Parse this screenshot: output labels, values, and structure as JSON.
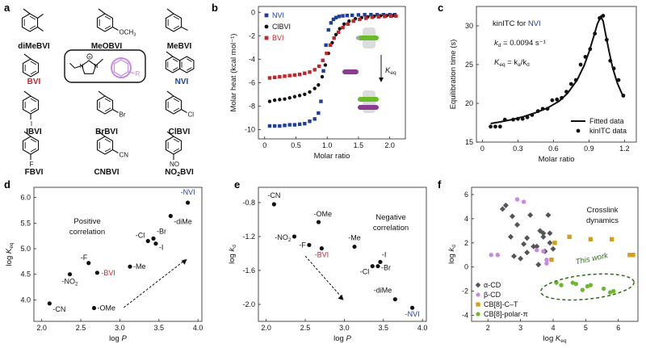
{
  "panels": {
    "a": "a",
    "b": "b",
    "c": "c",
    "d": "d",
    "e": "e",
    "f": "f"
  },
  "molecules": [
    {
      "name": "diMeBVI",
      "color": "#111111"
    },
    {
      "name": "MeOBVI",
      "color": "#111111",
      "sub": "OCH",
      "sub3": "3"
    },
    {
      "name": "MeBVI",
      "color": "#111111"
    },
    {
      "name": "BVI",
      "color": "#c0272d"
    },
    {
      "name": "NVI",
      "color": "#1f3f99"
    },
    {
      "name": "IBVI",
      "color": "#111111",
      "sub": "I"
    },
    {
      "name": "BrBVI",
      "color": "#111111",
      "sub": "Br"
    },
    {
      "name": "ClBVI",
      "color": "#111111",
      "sub": "Cl"
    },
    {
      "name": "FBVI",
      "color": "#111111",
      "sub": "F"
    },
    {
      "name": "CNBVI",
      "color": "#111111",
      "sub": "CN"
    },
    {
      "name": "NO2BVI",
      "color": "#111111",
      "sub": "NO"
    }
  ],
  "core_labels": {
    "R": "R",
    "plus": "+",
    "N": "N"
  },
  "colors": {
    "blue": "#1f3f99",
    "red": "#c0272d",
    "black": "#111111",
    "purple": "#c58be0",
    "gold": "#d4a017",
    "green": "#6aba2a",
    "green_dark": "#2e6b16",
    "gray": "#555555"
  },
  "chart_data": [
    {
      "panel": "b",
      "type": "scatter",
      "xlabel": "Molar ratio",
      "ylabel": "Molar heat (kcal mol⁻¹)",
      "xlim": [
        -0.1,
        2.25
      ],
      "ylim": [
        -10.8,
        0.5
      ],
      "xticks": [
        0,
        0.5,
        1.0,
        1.5,
        2.0
      ],
      "xticklabels": [
        "0",
        "0.5",
        "1.0",
        "1.5",
        "2.0"
      ],
      "yticks": [
        0,
        -2,
        -4,
        -6,
        -8,
        -10
      ],
      "legend_position": "top-left",
      "series": [
        {
          "name": "NVI",
          "color": "#1f3f99",
          "marker": "square",
          "x": [
            0.08,
            0.16,
            0.24,
            0.32,
            0.4,
            0.48,
            0.56,
            0.64,
            0.72,
            0.8,
            0.86,
            0.9,
            0.94,
            0.98,
            1.02,
            1.06,
            1.1,
            1.14,
            1.19,
            1.25,
            1.32,
            1.4,
            1.5,
            1.6,
            1.7,
            1.8,
            1.9,
            2.0,
            2.08
          ],
          "y": [
            -9.7,
            -9.7,
            -9.7,
            -9.65,
            -9.6,
            -9.6,
            -9.55,
            -9.5,
            -9.3,
            -9.1,
            -8.6,
            -7.6,
            -5.0,
            -2.8,
            -1.5,
            -0.9,
            -0.6,
            -0.45,
            -0.35,
            -0.3,
            -0.27,
            -0.25,
            -0.22,
            -0.2,
            -0.2,
            -0.2,
            -0.2,
            -0.2,
            -0.2
          ]
        },
        {
          "name": "ClBVI",
          "color": "#111111",
          "marker": "circle",
          "x": [
            0.08,
            0.16,
            0.24,
            0.32,
            0.4,
            0.48,
            0.56,
            0.64,
            0.72,
            0.8,
            0.86,
            0.92,
            0.97,
            1.02,
            1.08,
            1.14,
            1.2,
            1.27,
            1.35,
            1.45,
            1.55,
            1.65,
            1.75,
            1.85,
            1.95,
            2.05
          ],
          "y": [
            -7.6,
            -7.5,
            -7.45,
            -7.4,
            -7.3,
            -7.2,
            -7.1,
            -7.0,
            -6.8,
            -6.5,
            -6.2,
            -5.5,
            -4.5,
            -3.5,
            -2.6,
            -1.9,
            -1.4,
            -1.0,
            -0.75,
            -0.55,
            -0.45,
            -0.38,
            -0.33,
            -0.3,
            -0.28,
            -0.27
          ]
        },
        {
          "name": "BVI",
          "color": "#c0272d",
          "marker": "square",
          "x": [
            0.08,
            0.16,
            0.24,
            0.32,
            0.4,
            0.48,
            0.56,
            0.64,
            0.72,
            0.8,
            0.87,
            0.93,
            0.99,
            1.05,
            1.11,
            1.18,
            1.25,
            1.33,
            1.42,
            1.52,
            1.62,
            1.72,
            1.82,
            1.92,
            2.02,
            2.1
          ],
          "y": [
            -5.6,
            -5.55,
            -5.5,
            -5.45,
            -5.4,
            -5.35,
            -5.3,
            -5.2,
            -5.1,
            -4.9,
            -4.6,
            -4.1,
            -3.5,
            -2.8,
            -2.2,
            -1.7,
            -1.3,
            -1.0,
            -0.75,
            -0.6,
            -0.5,
            -0.42,
            -0.38,
            -0.35,
            -0.33,
            -0.32
          ]
        }
      ],
      "annotation": "K",
      "annotation_sub": "eq"
    },
    {
      "panel": "c",
      "type": "scatter",
      "title": "kinITC for ",
      "title_highlight": "NVI",
      "kd_label": "k",
      "kd_sub": "d",
      "kd_value": " = 0.0094 s⁻¹",
      "keq_label": "K",
      "keq_sub": "eq",
      "keq_eq": " = k",
      "keq_eq_sub_a": "a",
      "keq_slash": "/k",
      "keq_eq_sub_d": "d",
      "xlabel": "Molar ratio",
      "ylabel": "Equilibration time (s)",
      "xlim": [
        -0.05,
        1.3
      ],
      "ylim": [
        15,
        32.5
      ],
      "xticks": [
        0,
        0.3,
        0.6,
        0.9,
        1.2
      ],
      "xticklabels": [
        "0",
        "0.3",
        "0.6",
        "0.9",
        "1.2"
      ],
      "yticks": [
        15,
        20,
        25,
        30
      ],
      "legend_position": "bottom-right",
      "series": [
        {
          "name": "Fitted data",
          "type": "line",
          "color": "#111111",
          "x": [
            0.07,
            0.15,
            0.25,
            0.35,
            0.45,
            0.55,
            0.65,
            0.72,
            0.8,
            0.86,
            0.9,
            0.94,
            0.97,
            1.0,
            1.02,
            1.04,
            1.07,
            1.1,
            1.14,
            1.18,
            1.2
          ],
          "y": [
            17.4,
            17.6,
            17.9,
            18.3,
            18.8,
            19.4,
            20.3,
            21.3,
            23.0,
            24.9,
            26.6,
            28.6,
            30.2,
            31.2,
            30.6,
            29.0,
            26.7,
            24.6,
            22.6,
            21.2,
            20.8
          ]
        },
        {
          "name": "kinITC data",
          "type": "scatter",
          "color": "#111111",
          "x": [
            0.07,
            0.11,
            0.15,
            0.19,
            0.26,
            0.3,
            0.34,
            0.38,
            0.42,
            0.47,
            0.51,
            0.55,
            0.59,
            0.63,
            0.67,
            0.71,
            0.75,
            0.79,
            0.83,
            0.87,
            0.91,
            0.95,
            0.99,
            1.02,
            1.05,
            1.08,
            1.11,
            1.15,
            1.19
          ],
          "y": [
            17.0,
            17.0,
            17.0,
            17.9,
            17.9,
            18.0,
            18.0,
            18.2,
            18.5,
            19.0,
            19.3,
            19.3,
            20.4,
            20.5,
            20.7,
            21.5,
            22.5,
            23.0,
            25.0,
            26.0,
            27.0,
            29.0,
            31.0,
            31.3,
            28.2,
            25.5,
            24.5,
            23.0,
            21.0
          ]
        }
      ]
    },
    {
      "panel": "d",
      "type": "scatter",
      "xlabel": "log P",
      "ylabel": "log K",
      "ylabel_sub": "eq",
      "xlim": [
        1.9,
        4.05
      ],
      "ylim": [
        3.58,
        6.2
      ],
      "xticks": [
        2.0,
        2.5,
        3.0,
        3.5,
        4.0
      ],
      "xticklabels": [
        "2.0",
        "2.5",
        "3.0",
        "3.5",
        "4.0"
      ],
      "yticks": [
        4.0,
        4.5,
        5.0,
        5.5,
        6.0
      ],
      "yticklabels": [
        "4.0",
        "4.5",
        "5.0",
        "5.5",
        "6.0"
      ],
      "annotation": [
        "Positive",
        "correlation"
      ],
      "points": [
        {
          "label": "-CN",
          "x": 2.1,
          "y": 3.93,
          "color": "#111111"
        },
        {
          "label": "-NO",
          "sub": "2",
          "x": 2.36,
          "y": 4.5,
          "color": "#111111"
        },
        {
          "label": "-F",
          "x": 2.6,
          "y": 4.72,
          "color": "#111111"
        },
        {
          "label": "-BVI",
          "x": 2.71,
          "y": 4.53,
          "color": "#c0272d"
        },
        {
          "label": "-OMe",
          "x": 2.67,
          "y": 3.84,
          "color": "#111111"
        },
        {
          "label": "-Me",
          "x": 3.13,
          "y": 4.65,
          "color": "#111111"
        },
        {
          "label": "-Cl",
          "x": 3.36,
          "y": 5.15,
          "color": "#111111"
        },
        {
          "label": "-Br",
          "x": 3.43,
          "y": 5.2,
          "color": "#111111"
        },
        {
          "label": "-I",
          "x": 3.46,
          "y": 5.1,
          "color": "#111111"
        },
        {
          "label": "-diMe",
          "x": 3.65,
          "y": 5.64,
          "color": "#111111"
        },
        {
          "label": "-NVI",
          "x": 3.87,
          "y": 5.9,
          "color": "#1f3f99"
        }
      ]
    },
    {
      "panel": "e",
      "type": "scatter",
      "xlabel": "log P",
      "ylabel": "log k",
      "ylabel_sub": "d",
      "xlim": [
        1.9,
        4.05
      ],
      "ylim": [
        -2.2,
        -0.62
      ],
      "xticks": [
        2.0,
        2.5,
        3.0,
        3.5,
        4.0
      ],
      "xticklabels": [
        "2.0",
        "2.5",
        "3.0",
        "3.5",
        "4.0"
      ],
      "yticks": [
        -0.8,
        -1.2,
        -1.6,
        -2.0
      ],
      "yticklabels": [
        "-0.8",
        "-1.2",
        "-1.6",
        "-2.0"
      ],
      "annotation": [
        "Negative",
        "correlation"
      ],
      "points": [
        {
          "label": "-CN",
          "x": 2.1,
          "y": -0.82,
          "color": "#111111"
        },
        {
          "label": "-OMe",
          "x": 2.67,
          "y": -1.03,
          "color": "#111111"
        },
        {
          "label": "-NO",
          "sub": "2",
          "x": 2.36,
          "y": -1.2,
          "color": "#111111"
        },
        {
          "label": "-F",
          "x": 2.55,
          "y": -1.3,
          "color": "#111111"
        },
        {
          "label": "-BVI",
          "x": 2.71,
          "y": -1.34,
          "color": "#c0272d"
        },
        {
          "label": "-Me",
          "x": 3.13,
          "y": -1.32,
          "color": "#111111"
        },
        {
          "label": "-I",
          "x": 3.46,
          "y": -1.5,
          "color": "#111111"
        },
        {
          "label": "-Cl",
          "x": 3.36,
          "y": -1.55,
          "color": "#111111"
        },
        {
          "label": "-Br",
          "x": 3.43,
          "y": -1.55,
          "color": "#111111"
        },
        {
          "label": "-diMe",
          "x": 3.65,
          "y": -1.94,
          "color": "#111111"
        },
        {
          "label": "-NVI",
          "x": 3.87,
          "y": -2.04,
          "color": "#1f3f99"
        }
      ]
    },
    {
      "panel": "f",
      "type": "scatter",
      "xlabel": "log K",
      "xlabel_sub": "eq",
      "ylabel": "log k",
      "ylabel_sub": "d",
      "xlim": [
        1.5,
        6.6
      ],
      "ylim": [
        -4.5,
        6.6
      ],
      "xticks": [
        2,
        3,
        4,
        5,
        6
      ],
      "yticks": [
        6,
        4,
        2,
        0,
        -2,
        -4
      ],
      "annotation": [
        "Crosslink",
        "dynamics"
      ],
      "highlight": "This work",
      "legend_position": "bottom-left",
      "series": [
        {
          "name": "α-CD",
          "color": "#555555",
          "marker": "diamond",
          "x": [
            2.45,
            2.55,
            2.7,
            2.75,
            2.8,
            2.9,
            3.0,
            3.2,
            3.2,
            3.3,
            3.4,
            3.5,
            3.55,
            3.6,
            3.7,
            3.75,
            3.85,
            3.9,
            4.0,
            3.7,
            3.9,
            3.1
          ],
          "y": [
            4.8,
            5.1,
            2.5,
            4.2,
            0.9,
            3.5,
            0.7,
            2.4,
            1.2,
            4.3,
            1.7,
            1.7,
            0.2,
            3.0,
            2.5,
            1.3,
            4.3,
            2.8,
            1.5,
            2.8,
            2.0,
            1.9
          ]
        },
        {
          "name": "β-CD",
          "color": "#c58be0",
          "marker": "circle",
          "x": [
            2.1,
            2.3,
            2.9,
            3.1,
            3.5,
            3.7,
            3.8,
            3.8
          ],
          "y": [
            1.0,
            1.0,
            5.6,
            5.4,
            1.4,
            1.3,
            0.6,
            0.3
          ]
        },
        {
          "name": "CB[8]-C–T",
          "color": "#d4a017",
          "marker": "square",
          "x": [
            3.95,
            4.05,
            4.5,
            5.15,
            5.8,
            6.35,
            6.45
          ],
          "y": [
            0.6,
            2.0,
            2.5,
            2.3,
            2.3,
            1.0,
            1.0
          ]
        },
        {
          "name": "CB[8]-polar-π",
          "color": "#6aba2a",
          "marker": "circle",
          "x": [
            4.1,
            4.25,
            4.6,
            4.7,
            4.9,
            5.05,
            5.15,
            5.55,
            5.75,
            5.85
          ],
          "y": [
            -1.3,
            -1.5,
            -1.3,
            -1.4,
            -1.9,
            -1.6,
            -1.5,
            -1.8,
            -2.1,
            -2.0
          ]
        }
      ]
    }
  ]
}
